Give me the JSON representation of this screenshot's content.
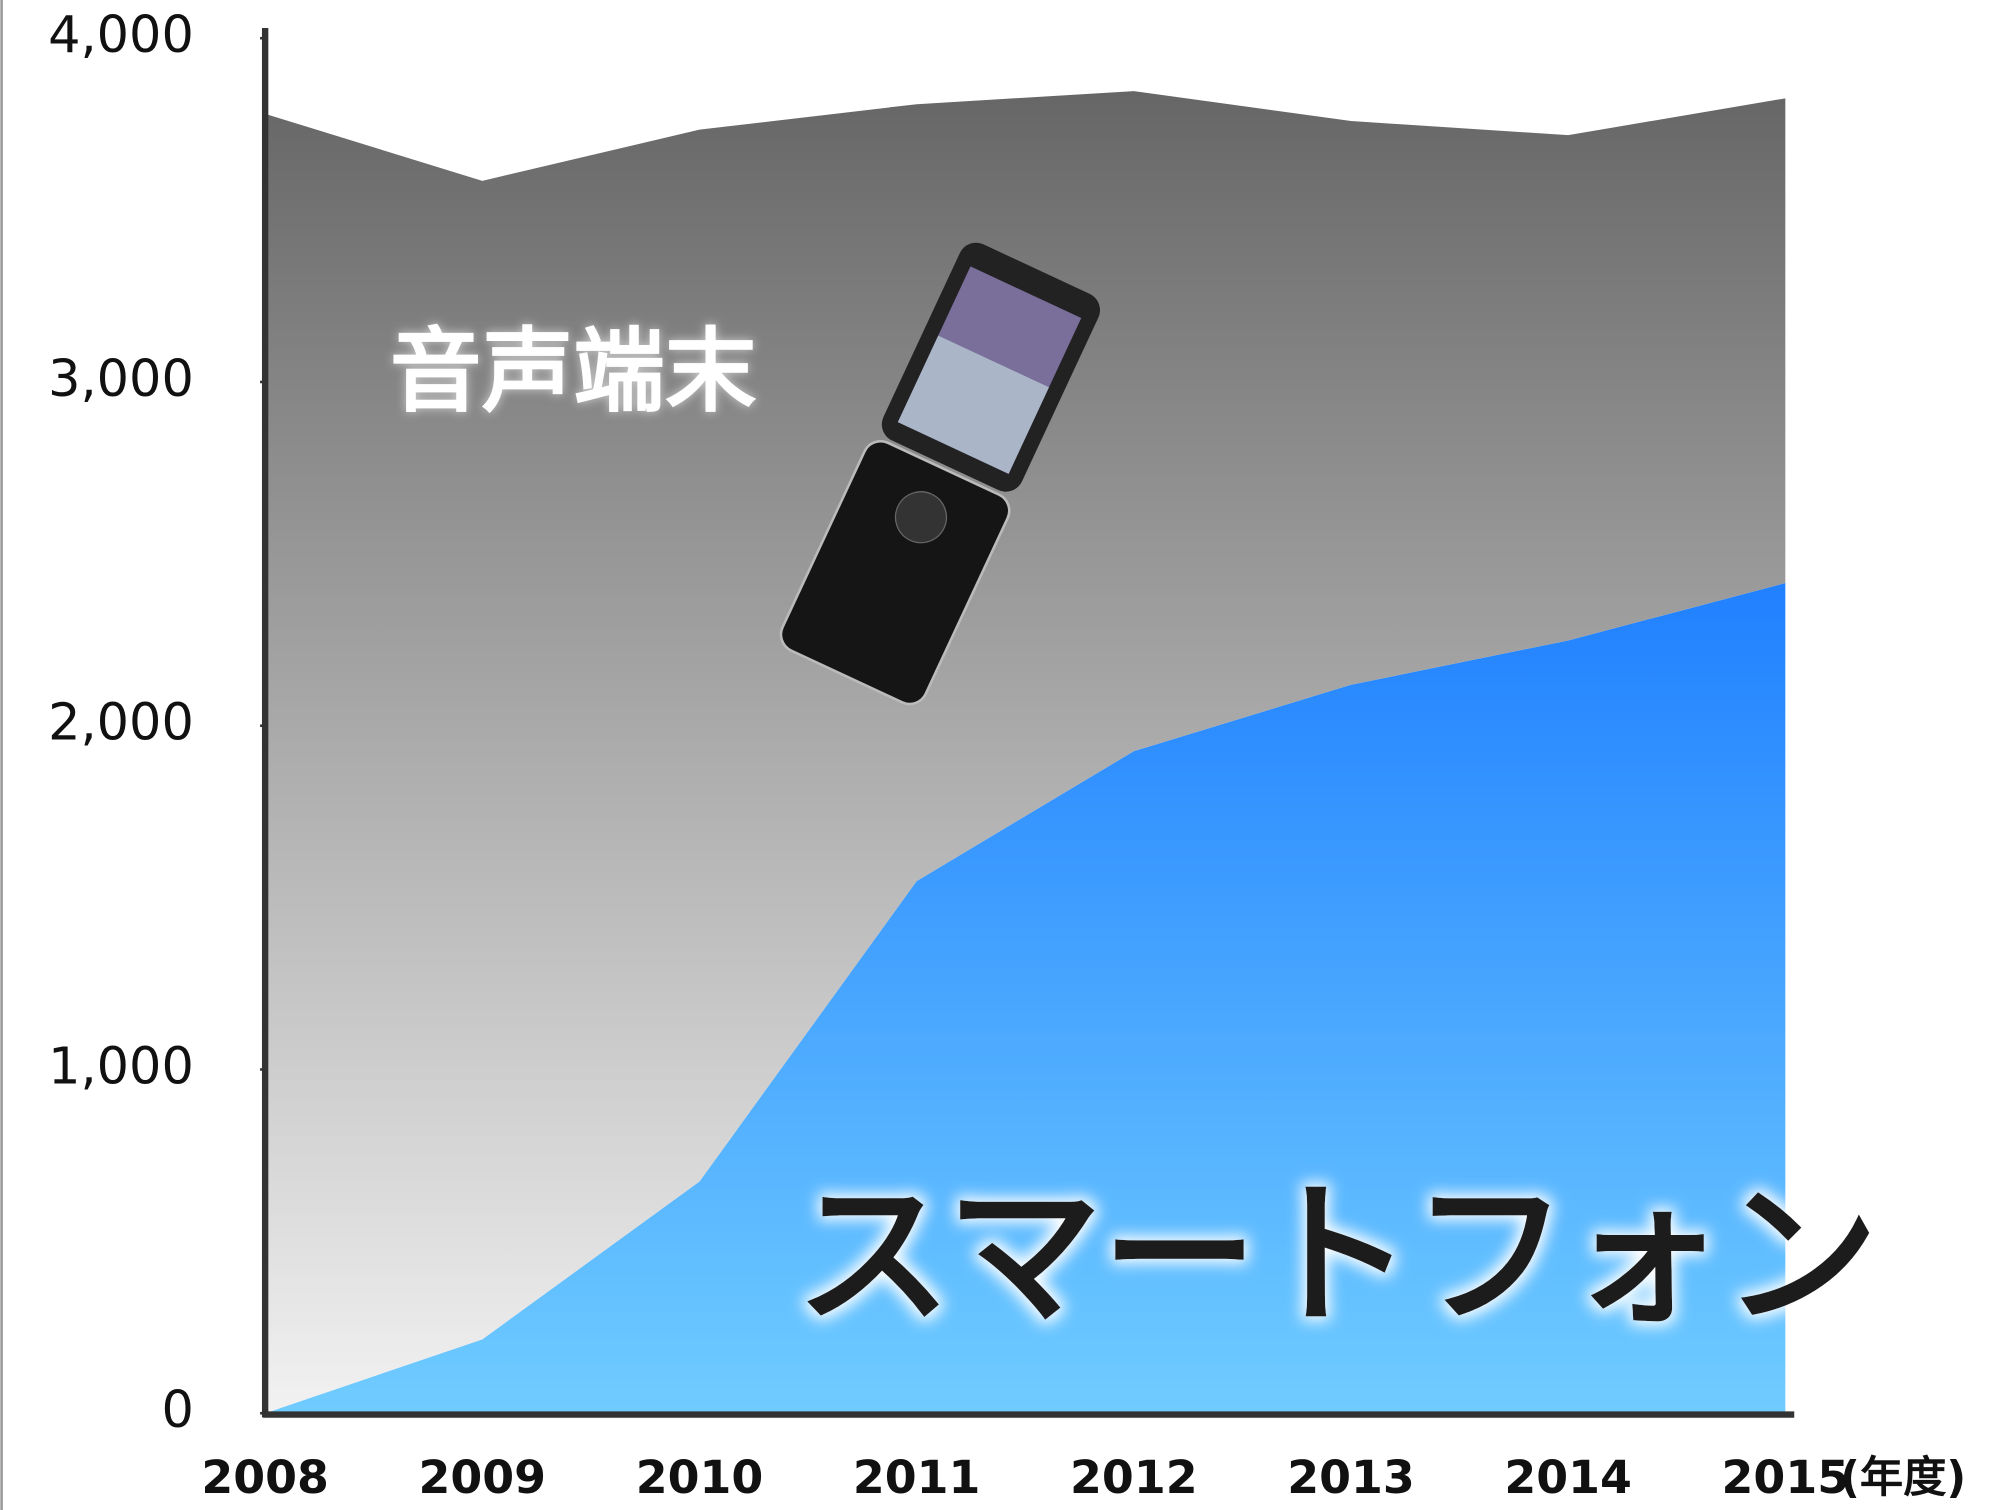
{
  "chart_data": {
    "type": "stacked-area",
    "categories": [
      "2008",
      "2009",
      "2010",
      "2011",
      "2012",
      "2013",
      "2014",
      "2015"
    ],
    "x_unit": "(年度)",
    "series": [
      {
        "name": "スマートフォン",
        "color": "#2080ff",
        "values": [
          0,
          215,
          674,
          1548,
          1926,
          2119,
          2248,
          2415
        ]
      },
      {
        "name": "音声端末",
        "color": "#666666",
        "values": [
          3780,
          3370,
          3060,
          2260,
          1920,
          1640,
          1470,
          1410
        ]
      }
    ],
    "ylim": [
      0,
      4000
    ],
    "yticks": [
      0,
      {
        "value": 1000,
        "label": "1,000"
      },
      {
        "value": 2000,
        "label": "2,000"
      },
      {
        "value": 3000,
        "label": "3,000"
      },
      {
        "value": 4000,
        "label": "4,000"
      }
    ]
  }
}
